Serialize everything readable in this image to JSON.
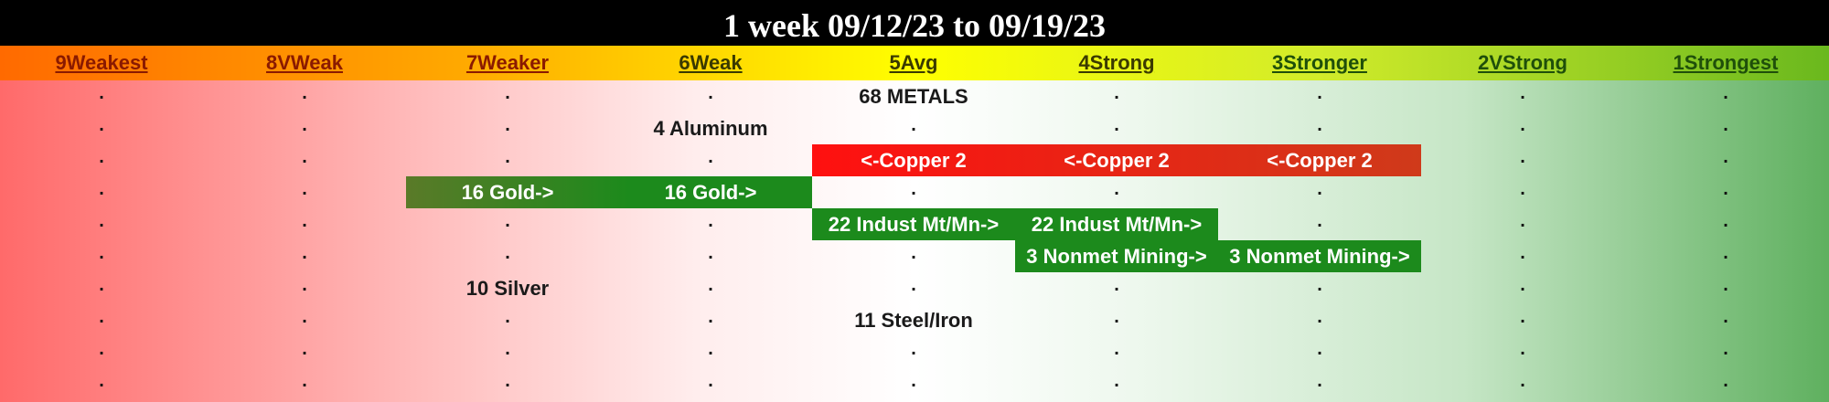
{
  "title": "1 week 09/12/23 to 09/19/23",
  "colors": {
    "up_bar": "#1c8a1c",
    "gold_bar_start": "#5a7a28",
    "down_bar_start": "#ff1010",
    "down_bar_end": "#cf3a1a",
    "col_head_weak": "#8a1a00",
    "col_head_mid": "#3a3a00",
    "col_head_strong": "#1f4f0a"
  },
  "chart_data": {
    "type": "table",
    "columns": [
      "9Weakest",
      "8VWeak",
      "7Weaker",
      "6Weak",
      "5Avg",
      "4Strong",
      "3Stronger",
      "2VStrong",
      "1Strongest"
    ],
    "row_count": 10,
    "placeholder": ".",
    "labels": [
      {
        "text": "68 METALS",
        "row": 0,
        "col": 4
      },
      {
        "text": "4 Aluminum",
        "row": 1,
        "col": 3
      },
      {
        "text": "10 Silver",
        "row": 6,
        "col": 2
      },
      {
        "text": "11 Steel/Iron",
        "row": 7,
        "col": 4
      }
    ],
    "moves": [
      {
        "name": "Copper",
        "rank": 2,
        "row": 2,
        "from_col": 6,
        "to_col": 4,
        "direction": "down",
        "cell_texts": [
          "<-Copper 2",
          "<-Copper 2",
          "<-Copper 2"
        ]
      },
      {
        "name": "Gold",
        "rank": 16,
        "row": 3,
        "from_col": 2,
        "to_col": 3,
        "direction": "up",
        "cell_texts": [
          "16 Gold->",
          "16 Gold->"
        ]
      },
      {
        "name": "Indust Mt/Mn",
        "rank": 22,
        "row": 4,
        "from_col": 4,
        "to_col": 5,
        "direction": "up",
        "cell_texts": [
          "22 Indust Mt/Mn->",
          "22 Indust Mt/Mn->"
        ]
      },
      {
        "name": "Nonmet Mining",
        "rank": 3,
        "row": 5,
        "from_col": 5,
        "to_col": 6,
        "direction": "up",
        "cell_texts": [
          "3 Nonmet Mining->",
          "3 Nonmet Mining->"
        ]
      }
    ]
  }
}
